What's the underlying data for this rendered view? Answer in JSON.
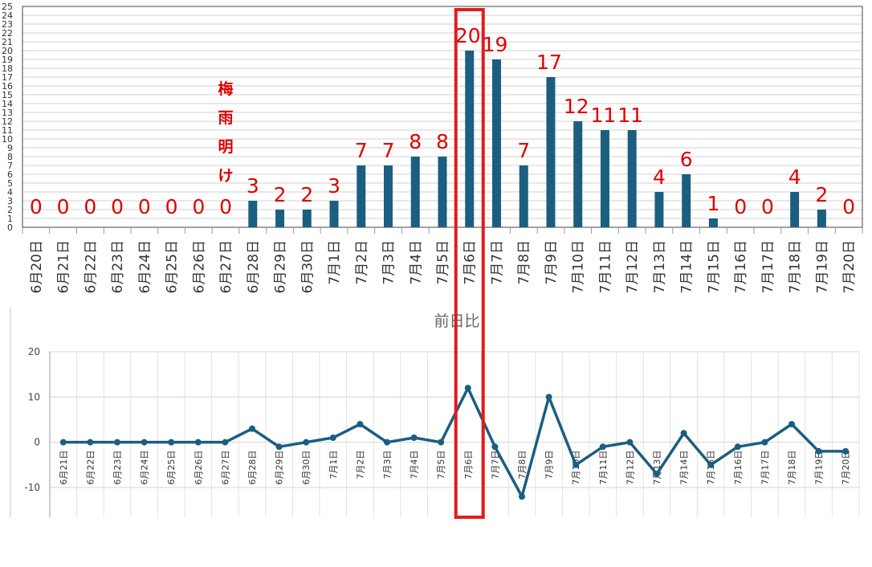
{
  "chart_data": [
    {
      "type": "bar",
      "categories": [
        "6月20日",
        "6月21日",
        "6月22日",
        "6月23日",
        "6月24日",
        "6月25日",
        "6月26日",
        "6月27日",
        "6月28日",
        "6月29日",
        "6月30日",
        "7月1日",
        "7月2日",
        "7月3日",
        "7月4日",
        "7月5日",
        "7月6日",
        "7月7日",
        "7月8日",
        "7月9日",
        "7月10日",
        "7月11日",
        "7月12日",
        "7月13日",
        "7月14日",
        "7月15日",
        "7月16日",
        "7月17日",
        "7月18日",
        "7月19日",
        "7月20日"
      ],
      "values": [
        0,
        0,
        0,
        0,
        0,
        0,
        0,
        0,
        3,
        2,
        2,
        3,
        7,
        7,
        8,
        8,
        20,
        19,
        7,
        17,
        12,
        11,
        11,
        4,
        6,
        1,
        0,
        0,
        4,
        2,
        0
      ],
      "ylim": [
        0,
        25
      ],
      "yticks": [
        0,
        1,
        2,
        3,
        4,
        5,
        6,
        7,
        8,
        9,
        10,
        11,
        12,
        13,
        14,
        15,
        16,
        17,
        18,
        19,
        20,
        21,
        22,
        23,
        24,
        25
      ],
      "grid": true,
      "bar_color": "#1b5e80",
      "label_color": "#e00000",
      "annotation": {
        "text": "梅雨明け",
        "category": "6月27日"
      },
      "highlight_category": "7月6日",
      "highlight_color": "#e21b1b"
    },
    {
      "type": "line",
      "title": "前日比",
      "categories": [
        "6月21日",
        "6月22日",
        "6月23日",
        "6月24日",
        "6月25日",
        "6月26日",
        "6月27日",
        "6月28日",
        "6月29日",
        "6月30日",
        "7月1日",
        "7月2日",
        "7月3日",
        "7月4日",
        "7月5日",
        "7月6日",
        "7月7日",
        "7月8日",
        "7月9日",
        "7月10日",
        "7月11日",
        "7月12日",
        "7月13日",
        "7月14日",
        "7月15日",
        "7月16日",
        "7月17日",
        "7月18日",
        "7月19日",
        "7月20日"
      ],
      "values": [
        0,
        0,
        0,
        0,
        0,
        0,
        0,
        3,
        -1,
        0,
        1,
        4,
        0,
        1,
        0,
        12,
        -1,
        -12,
        10,
        -5,
        -1,
        0,
        -7,
        2,
        -5,
        -1,
        0,
        4,
        -2,
        -2
      ],
      "ylim": [
        -10,
        20
      ],
      "yticks": [
        -10,
        0,
        10,
        20
      ],
      "grid": true,
      "line_color": "#1b5e80"
    }
  ]
}
